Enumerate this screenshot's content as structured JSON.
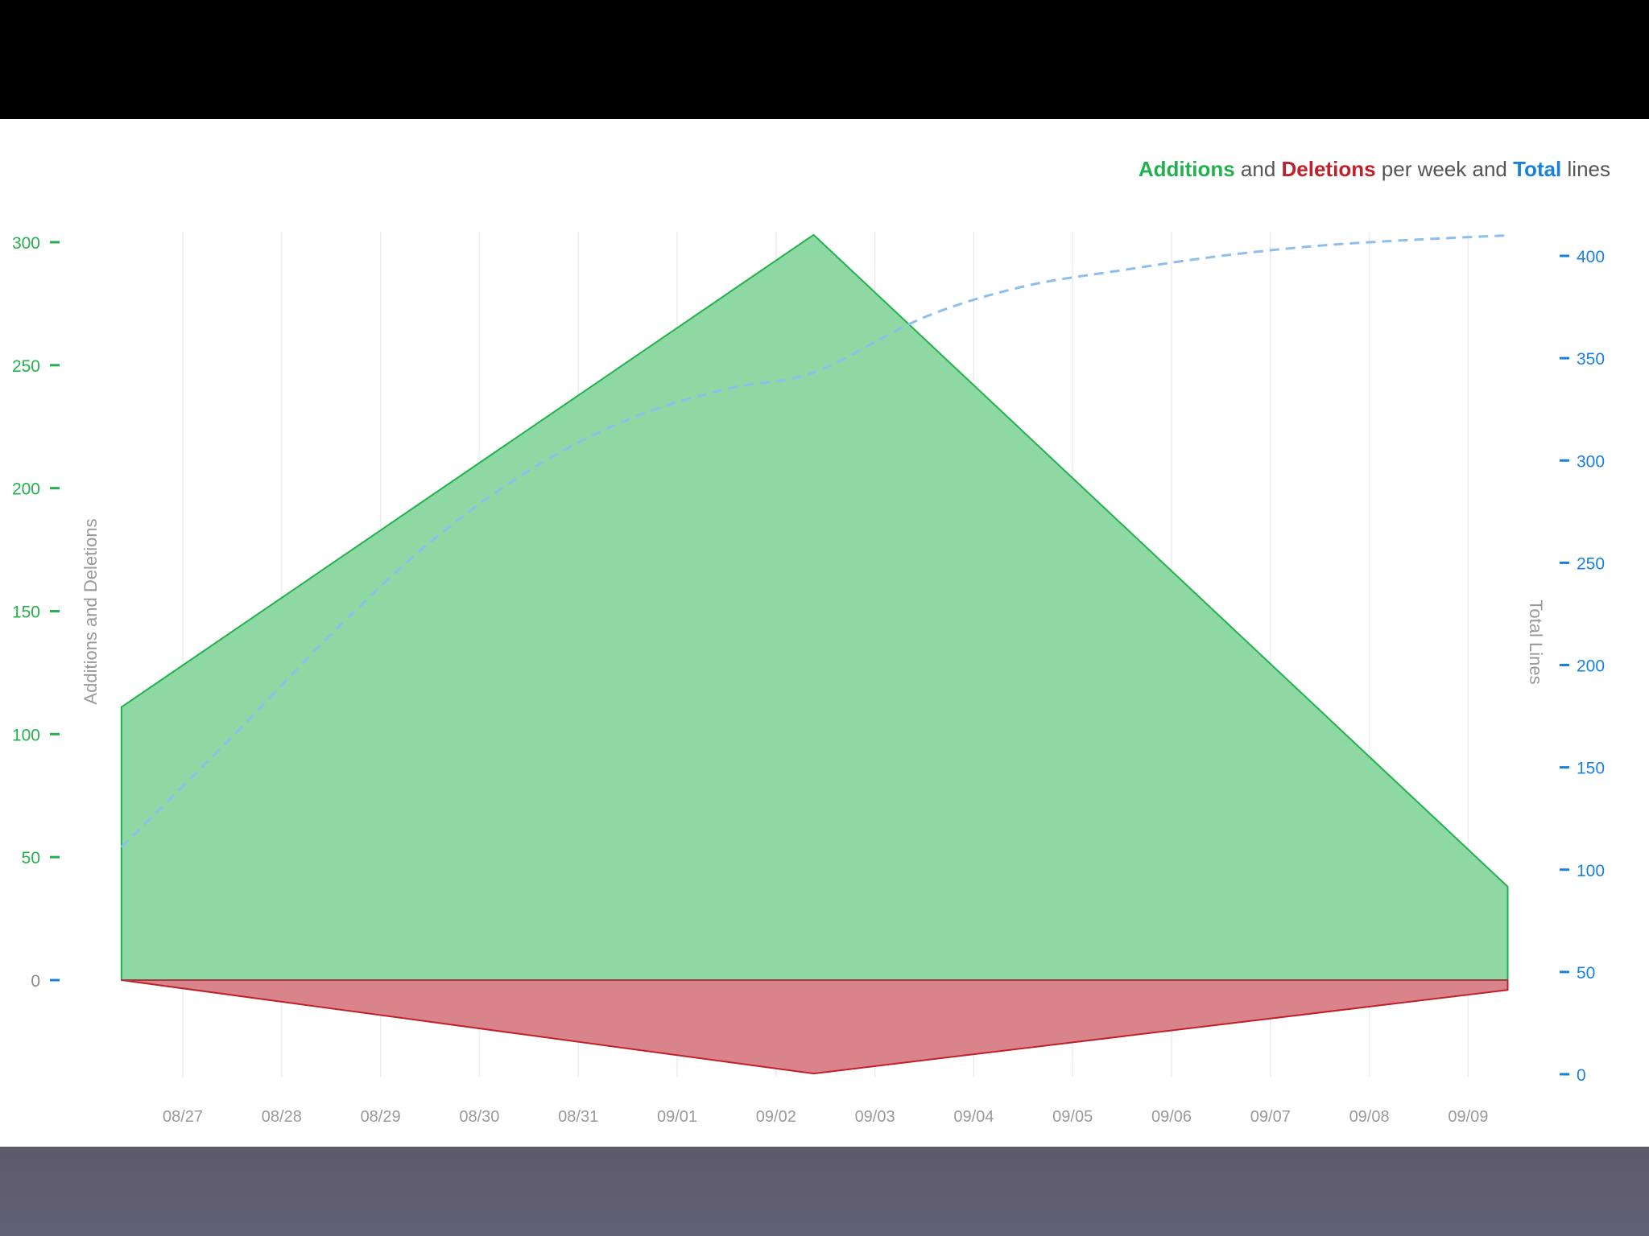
{
  "chart_data": {
    "type": "area",
    "title_parts": [
      {
        "text": "Additions",
        "color": "#22b14c",
        "bold": true
      },
      {
        "text": " and ",
        "color": "#555555",
        "bold": false
      },
      {
        "text": "Deletions",
        "color": "#c0202a",
        "bold": true
      },
      {
        "text": " per week and ",
        "color": "#555555",
        "bold": false
      },
      {
        "text": "Total",
        "color": "#1a80e0",
        "bold": true
      },
      {
        "text": " lines",
        "color": "#555555",
        "bold": false
      }
    ],
    "ylabel_left": "Additions and Deletions",
    "ylabel_right": "Total Lines",
    "x_tick_labels": [
      "08/27",
      "08/28",
      "08/29",
      "08/30",
      "08/31",
      "09/01",
      "09/02",
      "09/03",
      "09/04",
      "09/05",
      "09/06",
      "09/07",
      "09/08",
      "09/09"
    ],
    "x_range": [
      -0.62,
      13.4
    ],
    "left_axis": {
      "ticks": [
        0,
        50,
        100,
        150,
        200,
        250,
        300
      ],
      "range": [
        -38,
        303
      ],
      "color": "#22b14c",
      "zero_color": "#8a8a8a"
    },
    "right_axis": {
      "ticks": [
        0,
        50,
        100,
        150,
        200,
        250,
        300,
        350,
        400
      ],
      "range": [
        0,
        410
      ],
      "color": "#1a80e0"
    },
    "series": [
      {
        "name": "Additions",
        "color": "#22b14c",
        "fill": "#8ed8a4",
        "points": [
          [
            -0.62,
            0
          ],
          [
            -0.62,
            111
          ],
          [
            6.38,
            303
          ],
          [
            13.4,
            38
          ],
          [
            13.4,
            0
          ]
        ]
      },
      {
        "name": "Deletions",
        "color": "#c0202a",
        "fill": "#d8848a",
        "points": [
          [
            -0.62,
            0
          ],
          [
            6.38,
            -38
          ],
          [
            13.4,
            -4
          ],
          [
            13.4,
            0
          ]
        ]
      },
      {
        "name": "Total",
        "color": "#1a80e0",
        "dashed": true,
        "x": [
          -0.62,
          0.5,
          1.5,
          2.5,
          3.5,
          4.5,
          5.5,
          6.38,
          7.5,
          8.5,
          9.5,
          10.5,
          11.5,
          12.5,
          13.4
        ],
        "y": [
          111,
          165,
          215,
          260,
          295,
          320,
          335,
          343,
          370,
          385,
          393,
          400,
          405,
          408,
          410
        ]
      }
    ],
    "grid": {
      "vertical": true,
      "horizontal": false
    },
    "legend": "title-top-right"
  }
}
